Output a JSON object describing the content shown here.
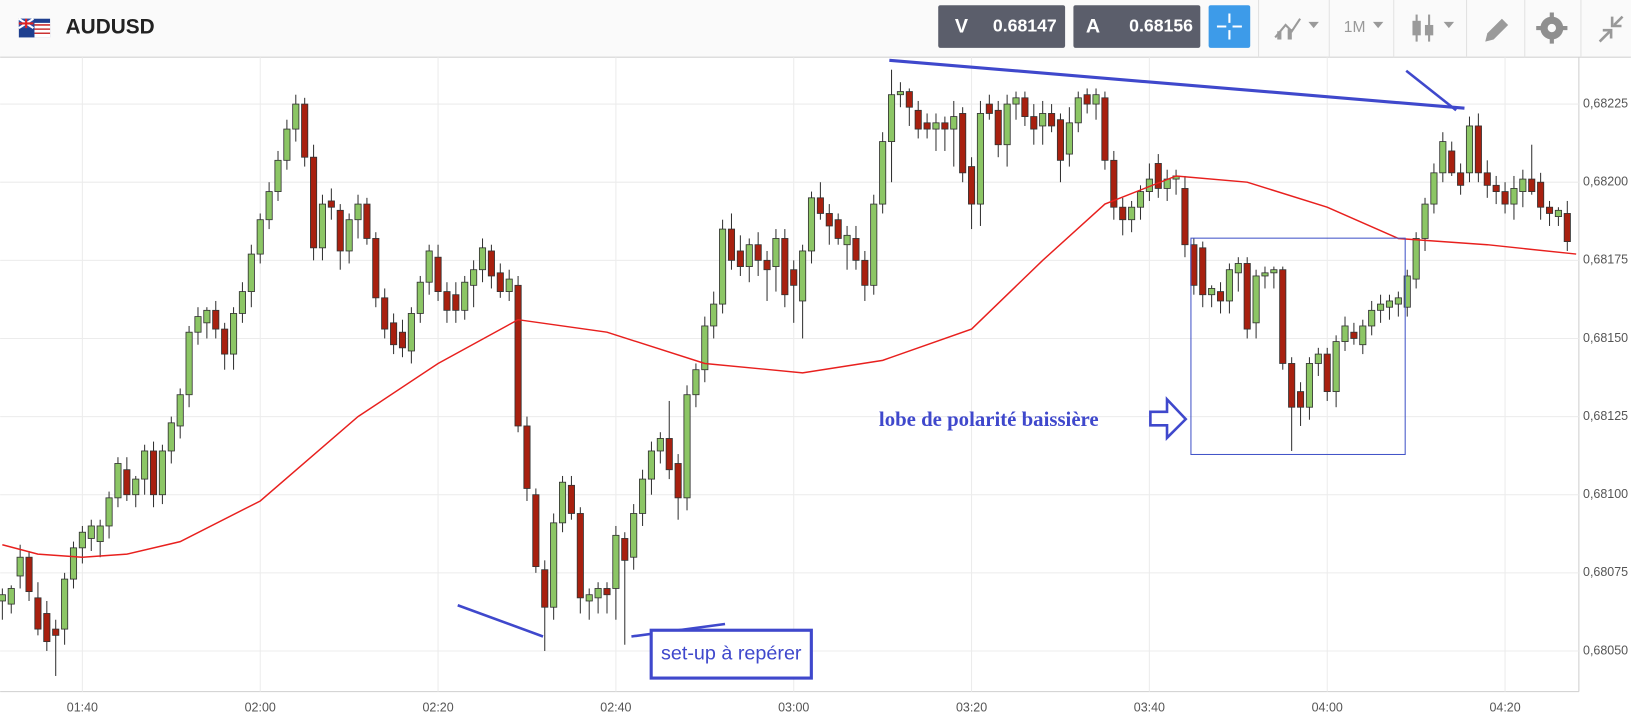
{
  "header": {
    "symbol": "AUDUSD",
    "bid_label": "V",
    "bid": "0.68147",
    "ask_label": "A",
    "ask": "0.68156",
    "timeframe": "1M"
  },
  "chart_data": {
    "type": "candlestick",
    "up_color": "#8cc665",
    "down_color": "#a8200f",
    "ohlc": [
      [
        0.68066,
        0.6807,
        0.6806,
        0.68068
      ],
      [
        0.68065,
        0.68071,
        0.68062,
        0.6807
      ],
      [
        0.68074,
        0.68084,
        0.6807,
        0.6808
      ],
      [
        0.6808,
        0.68082,
        0.68066,
        0.68069
      ],
      [
        0.68067,
        0.68072,
        0.68055,
        0.68057
      ],
      [
        0.68062,
        0.68066,
        0.6805,
        0.68053
      ],
      [
        0.68057,
        0.6806,
        0.68042,
        0.68055
      ],
      [
        0.68057,
        0.68075,
        0.68052,
        0.68073
      ],
      [
        0.68073,
        0.68085,
        0.6807,
        0.68083
      ],
      [
        0.68083,
        0.6809,
        0.68078,
        0.68088
      ],
      [
        0.68086,
        0.68092,
        0.68082,
        0.6809
      ],
      [
        0.68085,
        0.68092,
        0.6808,
        0.6809
      ],
      [
        0.6809,
        0.68101,
        0.68086,
        0.68099
      ],
      [
        0.68099,
        0.68112,
        0.68096,
        0.6811
      ],
      [
        0.68108,
        0.68112,
        0.68098,
        0.681
      ],
      [
        0.681,
        0.68106,
        0.68096,
        0.68105
      ],
      [
        0.68105,
        0.68116,
        0.681,
        0.68114
      ],
      [
        0.68114,
        0.68117,
        0.68096,
        0.681
      ],
      [
        0.681,
        0.68116,
        0.68097,
        0.68114
      ],
      [
        0.68114,
        0.68125,
        0.6811,
        0.68123
      ],
      [
        0.68122,
        0.68134,
        0.68118,
        0.68132
      ],
      [
        0.68132,
        0.68154,
        0.68128,
        0.68152
      ],
      [
        0.68152,
        0.6816,
        0.68148,
        0.68157
      ],
      [
        0.68155,
        0.6816,
        0.6815,
        0.68159
      ],
      [
        0.68159,
        0.68162,
        0.6815,
        0.68153
      ],
      [
        0.68153,
        0.68155,
        0.6814,
        0.68145
      ],
      [
        0.68145,
        0.6816,
        0.6814,
        0.68158
      ],
      [
        0.68158,
        0.68168,
        0.68155,
        0.68165
      ],
      [
        0.68165,
        0.6818,
        0.6816,
        0.68177
      ],
      [
        0.68177,
        0.6819,
        0.68174,
        0.68188
      ],
      [
        0.68188,
        0.682,
        0.68185,
        0.68197
      ],
      [
        0.68197,
        0.6821,
        0.68194,
        0.68207
      ],
      [
        0.68207,
        0.6822,
        0.68204,
        0.68217
      ],
      [
        0.68217,
        0.68228,
        0.68213,
        0.68225
      ],
      [
        0.68225,
        0.68227,
        0.68205,
        0.68208
      ],
      [
        0.68208,
        0.68212,
        0.68175,
        0.68179
      ],
      [
        0.68179,
        0.68196,
        0.68175,
        0.68193
      ],
      [
        0.68194,
        0.68198,
        0.68188,
        0.68192
      ],
      [
        0.68191,
        0.68193,
        0.68172,
        0.68178
      ],
      [
        0.68178,
        0.6819,
        0.68174,
        0.68188
      ],
      [
        0.68188,
        0.68196,
        0.68182,
        0.68193
      ],
      [
        0.68193,
        0.68195,
        0.6818,
        0.68182
      ],
      [
        0.68182,
        0.68184,
        0.6816,
        0.68163
      ],
      [
        0.68163,
        0.68166,
        0.6815,
        0.68153
      ],
      [
        0.68155,
        0.68158,
        0.68145,
        0.68148
      ],
      [
        0.68152,
        0.68156,
        0.68144,
        0.68147
      ],
      [
        0.68146,
        0.6816,
        0.68142,
        0.68158
      ],
      [
        0.68158,
        0.6817,
        0.68155,
        0.68168
      ],
      [
        0.68168,
        0.6818,
        0.68164,
        0.68178
      ],
      [
        0.68176,
        0.6818,
        0.68162,
        0.68165
      ],
      [
        0.68165,
        0.68168,
        0.68155,
        0.68159
      ],
      [
        0.68164,
        0.68168,
        0.68155,
        0.68159
      ],
      [
        0.68159,
        0.6817,
        0.68156,
        0.68168
      ],
      [
        0.68167,
        0.68175,
        0.6816,
        0.68172
      ],
      [
        0.68172,
        0.68182,
        0.68168,
        0.68179
      ],
      [
        0.68178,
        0.6818,
        0.68166,
        0.6817
      ],
      [
        0.68171,
        0.68174,
        0.68163,
        0.68165
      ],
      [
        0.68165,
        0.68172,
        0.68162,
        0.68169
      ],
      [
        0.68167,
        0.6817,
        0.6812,
        0.68122
      ],
      [
        0.68122,
        0.68125,
        0.68098,
        0.68102
      ],
      [
        0.681,
        0.68102,
        0.68075,
        0.68077
      ],
      [
        0.68076,
        0.68079,
        0.6805,
        0.68064
      ],
      [
        0.68064,
        0.68094,
        0.6806,
        0.68091
      ],
      [
        0.68091,
        0.68106,
        0.68088,
        0.68104
      ],
      [
        0.68103,
        0.68106,
        0.68092,
        0.68094
      ],
      [
        0.68094,
        0.68096,
        0.68062,
        0.68067
      ],
      [
        0.68066,
        0.6807,
        0.6806,
        0.68068
      ],
      [
        0.68067,
        0.68072,
        0.68062,
        0.6807
      ],
      [
        0.6807,
        0.68072,
        0.68062,
        0.68068
      ],
      [
        0.6807,
        0.6809,
        0.6806,
        0.68087
      ],
      [
        0.68086,
        0.68088,
        0.68052,
        0.68079
      ],
      [
        0.6808,
        0.68097,
        0.68076,
        0.68094
      ],
      [
        0.68094,
        0.68108,
        0.6809,
        0.68105
      ],
      [
        0.68105,
        0.68117,
        0.681,
        0.68114
      ],
      [
        0.68114,
        0.6812,
        0.6811,
        0.68118
      ],
      [
        0.68118,
        0.6813,
        0.68105,
        0.68108
      ],
      [
        0.6811,
        0.68113,
        0.68092,
        0.68099
      ],
      [
        0.68099,
        0.68135,
        0.68095,
        0.68132
      ],
      [
        0.68132,
        0.68142,
        0.68128,
        0.6814
      ],
      [
        0.6814,
        0.68157,
        0.68136,
        0.68154
      ],
      [
        0.68154,
        0.68165,
        0.6815,
        0.68161
      ],
      [
        0.68161,
        0.68188,
        0.68158,
        0.68185
      ],
      [
        0.68185,
        0.6819,
        0.68172,
        0.68175
      ],
      [
        0.68178,
        0.68183,
        0.6817,
        0.68173
      ],
      [
        0.68173,
        0.68182,
        0.68168,
        0.6818
      ],
      [
        0.6818,
        0.68184,
        0.6817,
        0.68175
      ],
      [
        0.68175,
        0.68178,
        0.68162,
        0.68172
      ],
      [
        0.68173,
        0.68185,
        0.68165,
        0.68182
      ],
      [
        0.68182,
        0.68185,
        0.6816,
        0.68164
      ],
      [
        0.68172,
        0.68175,
        0.68155,
        0.68167
      ],
      [
        0.68162,
        0.6818,
        0.6815,
        0.68178
      ],
      [
        0.68178,
        0.68197,
        0.68174,
        0.68195
      ],
      [
        0.68195,
        0.682,
        0.68188,
        0.6819
      ],
      [
        0.6819,
        0.68193,
        0.6818,
        0.68186
      ],
      [
        0.68188,
        0.6819,
        0.6818,
        0.68182
      ],
      [
        0.6818,
        0.68186,
        0.68172,
        0.68183
      ],
      [
        0.68182,
        0.68186,
        0.68172,
        0.68175
      ],
      [
        0.68175,
        0.68178,
        0.68162,
        0.68167
      ],
      [
        0.68167,
        0.68196,
        0.68164,
        0.68193
      ],
      [
        0.68193,
        0.68216,
        0.6819,
        0.68213
      ],
      [
        0.68213,
        0.68236,
        0.682,
        0.68228
      ],
      [
        0.68228,
        0.68232,
        0.68224,
        0.68229
      ],
      [
        0.68229,
        0.6823,
        0.68218,
        0.68224
      ],
      [
        0.68223,
        0.68226,
        0.68214,
        0.68217
      ],
      [
        0.68219,
        0.68222,
        0.68214,
        0.68217
      ],
      [
        0.68217,
        0.68222,
        0.6821,
        0.68219
      ],
      [
        0.68219,
        0.68221,
        0.6821,
        0.68217
      ],
      [
        0.68217,
        0.68226,
        0.68205,
        0.68221
      ],
      [
        0.68222,
        0.68224,
        0.682,
        0.68203
      ],
      [
        0.68205,
        0.68208,
        0.68185,
        0.68193
      ],
      [
        0.68193,
        0.68226,
        0.68186,
        0.68222
      ],
      [
        0.68225,
        0.68228,
        0.6822,
        0.68222
      ],
      [
        0.68223,
        0.68226,
        0.68208,
        0.68212
      ],
      [
        0.68212,
        0.68228,
        0.68205,
        0.68225
      ],
      [
        0.68225,
        0.68229,
        0.6822,
        0.68227
      ],
      [
        0.68227,
        0.68229,
        0.68218,
        0.68221
      ],
      [
        0.68221,
        0.68225,
        0.68212,
        0.68217
      ],
      [
        0.68218,
        0.68226,
        0.68212,
        0.68222
      ],
      [
        0.68222,
        0.68225,
        0.68216,
        0.68218
      ],
      [
        0.6822,
        0.68222,
        0.682,
        0.68207
      ],
      [
        0.68209,
        0.68224,
        0.68205,
        0.68219
      ],
      [
        0.68219,
        0.68229,
        0.68216,
        0.68227
      ],
      [
        0.68228,
        0.6823,
        0.68222,
        0.68225
      ],
      [
        0.68225,
        0.6823,
        0.6822,
        0.68228
      ],
      [
        0.68227,
        0.68229,
        0.68204,
        0.68207
      ],
      [
        0.68207,
        0.6821,
        0.68188,
        0.68192
      ],
      [
        0.68192,
        0.68195,
        0.68183,
        0.68188
      ],
      [
        0.68188,
        0.68194,
        0.68184,
        0.68192
      ],
      [
        0.68192,
        0.68199,
        0.68188,
        0.68197
      ],
      [
        0.68197,
        0.68206,
        0.68194,
        0.68201
      ],
      [
        0.68206,
        0.68209,
        0.68195,
        0.68198
      ],
      [
        0.68198,
        0.68204,
        0.68194,
        0.68201
      ],
      [
        0.68201,
        0.68204,
        0.68196,
        0.68202
      ],
      [
        0.68198,
        0.68202,
        0.68176,
        0.6818
      ],
      [
        0.6818,
        0.68182,
        0.68164,
        0.68167
      ],
      [
        0.68179,
        0.68181,
        0.6816,
        0.68164
      ],
      [
        0.68164,
        0.68167,
        0.6816,
        0.68166
      ],
      [
        0.68165,
        0.68168,
        0.68158,
        0.68162
      ],
      [
        0.68162,
        0.68174,
        0.68158,
        0.68172
      ],
      [
        0.68171,
        0.68176,
        0.68165,
        0.68174
      ],
      [
        0.68174,
        0.68176,
        0.6815,
        0.68153
      ],
      [
        0.68155,
        0.68172,
        0.6815,
        0.6817
      ],
      [
        0.6817,
        0.68173,
        0.68166,
        0.68171
      ],
      [
        0.68171,
        0.68173,
        0.68166,
        0.68172
      ],
      [
        0.68172,
        0.68173,
        0.6814,
        0.68142
      ],
      [
        0.68142,
        0.68144,
        0.68114,
        0.68128
      ],
      [
        0.68133,
        0.68136,
        0.68122,
        0.68128
      ],
      [
        0.68128,
        0.68144,
        0.68124,
        0.68142
      ],
      [
        0.68142,
        0.68147,
        0.68138,
        0.68145
      ],
      [
        0.68145,
        0.68147,
        0.6813,
        0.68133
      ],
      [
        0.68133,
        0.68151,
        0.68128,
        0.68149
      ],
      [
        0.68149,
        0.68157,
        0.68146,
        0.68154
      ],
      [
        0.68152,
        0.68155,
        0.68148,
        0.6815
      ],
      [
        0.68148,
        0.68156,
        0.68145,
        0.68154
      ],
      [
        0.68154,
        0.68162,
        0.68151,
        0.68159
      ],
      [
        0.68159,
        0.68164,
        0.68155,
        0.68161
      ],
      [
        0.6816,
        0.68164,
        0.68156,
        0.68162
      ],
      [
        0.68161,
        0.68165,
        0.68157,
        0.68163
      ],
      [
        0.6816,
        0.68172,
        0.68157,
        0.6817
      ],
      [
        0.68169,
        0.68184,
        0.68166,
        0.68182
      ],
      [
        0.68182,
        0.68195,
        0.68178,
        0.68193
      ],
      [
        0.68193,
        0.68206,
        0.6819,
        0.68203
      ],
      [
        0.68203,
        0.68216,
        0.682,
        0.68213
      ],
      [
        0.6821,
        0.68213,
        0.68202,
        0.68203
      ],
      [
        0.68203,
        0.68206,
        0.68196,
        0.68199
      ],
      [
        0.68203,
        0.68221,
        0.682,
        0.68218
      ],
      [
        0.68218,
        0.68222,
        0.682,
        0.68203
      ],
      [
        0.68203,
        0.68207,
        0.68195,
        0.68199
      ],
      [
        0.68199,
        0.68202,
        0.68193,
        0.68197
      ],
      [
        0.68197,
        0.682,
        0.6819,
        0.68193
      ],
      [
        0.68193,
        0.68202,
        0.68188,
        0.68198
      ],
      [
        0.68197,
        0.68204,
        0.68192,
        0.68201
      ],
      [
        0.68201,
        0.68212,
        0.68196,
        0.68197
      ],
      [
        0.682,
        0.68203,
        0.68188,
        0.68192
      ],
      [
        0.68192,
        0.68194,
        0.68186,
        0.6819
      ],
      [
        0.68189,
        0.68192,
        0.68186,
        0.68191
      ],
      [
        0.6819,
        0.68194,
        0.68178,
        0.68181
      ]
    ],
    "ma": {
      "color": "#e8201e",
      "x": [
        0,
        4,
        9,
        14,
        20,
        29,
        40,
        49,
        58,
        68,
        79,
        90,
        99,
        109,
        117,
        124,
        132,
        140,
        149,
        157,
        167,
        177
      ],
      "values": [
        0.68084,
        0.68081,
        0.6808,
        0.68081,
        0.68085,
        0.68098,
        0.68125,
        0.68142,
        0.68156,
        0.68152,
        0.68142,
        0.68139,
        0.68143,
        0.68153,
        0.68175,
        0.68193,
        0.68202,
        0.682,
        0.68192,
        0.68182,
        0.6818,
        0.68177
      ]
    },
    "xlim": [
      -0.25,
      177.3
    ],
    "xticks": [
      {
        "value": 9,
        "label": "01:40"
      },
      {
        "value": 29,
        "label": "02:00"
      },
      {
        "value": 49,
        "label": "02:20"
      },
      {
        "value": 69,
        "label": "02:40"
      },
      {
        "value": 89,
        "label": "03:00"
      },
      {
        "value": 109,
        "label": "03:20"
      },
      {
        "value": 129,
        "label": "03:40"
      },
      {
        "value": 149,
        "label": "04:00"
      },
      {
        "value": 169,
        "label": "04:20"
      }
    ],
    "ylim": [
      0.68037,
      0.6824
    ],
    "yticks": [
      {
        "value": 0.6805,
        "label": "0,68050"
      },
      {
        "value": 0.68075,
        "label": "0,68075"
      },
      {
        "value": 0.681,
        "label": "0,68100"
      },
      {
        "value": 0.68125,
        "label": "0,68125"
      },
      {
        "value": 0.6815,
        "label": "0,68150"
      },
      {
        "value": 0.68175,
        "label": "0,68175"
      },
      {
        "value": 0.682,
        "label": "0,68200"
      },
      {
        "value": 0.68225,
        "label": "0,68225"
      }
    ],
    "grid": true,
    "annotations": [
      "lobe de polarité baissière",
      "set-up à repérer"
    ]
  }
}
